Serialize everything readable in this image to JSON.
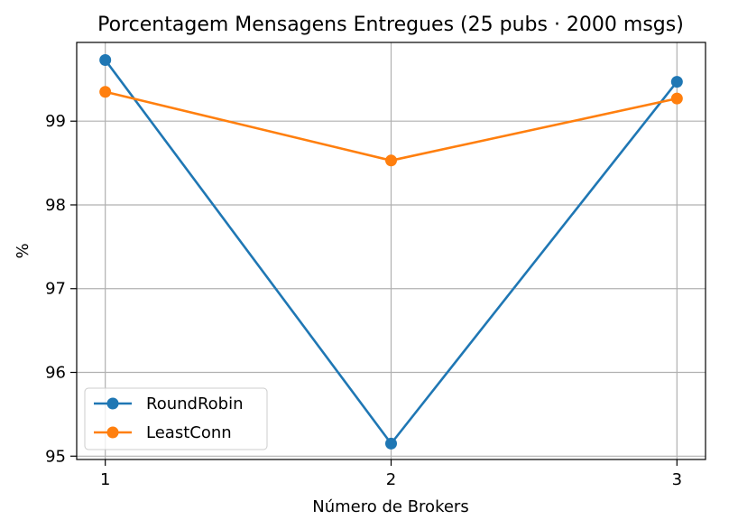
{
  "chart_data": {
    "type": "line",
    "title": "Porcentagem Mensagens Entregues (25 pubs · 2000 msgs)",
    "xlabel": "Número de Brokers",
    "ylabel": "%",
    "x": [
      1,
      2,
      3
    ],
    "x_tick_labels": [
      "1",
      "2",
      "3"
    ],
    "y_ticks": [
      95,
      96,
      97,
      98,
      99
    ],
    "y_tick_labels": [
      "95",
      "96",
      "97",
      "98",
      "99"
    ],
    "xlim": [
      0.9,
      3.1
    ],
    "ylim": [
      94.96,
      99.94
    ],
    "grid": true,
    "legend_position": "lower-left",
    "series": [
      {
        "name": "RoundRobin",
        "color": "#1f77b4",
        "marker": "circle",
        "values": [
          99.73,
          95.15,
          99.47
        ]
      },
      {
        "name": "LeastConn",
        "color": "#ff7f0e",
        "marker": "circle",
        "values": [
          99.35,
          98.53,
          99.27
        ]
      }
    ]
  }
}
